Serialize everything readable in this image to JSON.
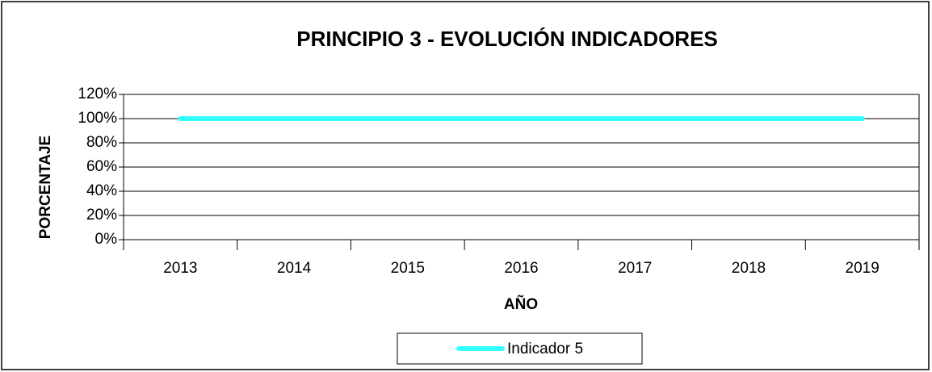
{
  "chart_data": {
    "type": "line",
    "title": "PRINCIPIO 3 - EVOLUCIÓN INDICADORES",
    "x_label": "AÑO",
    "y_label": "PORCENTAJE",
    "categories": [
      "2013",
      "2014",
      "2015",
      "2016",
      "2017",
      "2018",
      "2019"
    ],
    "series": [
      {
        "name": "Indicador 5",
        "color": "#33ffff",
        "values": [
          100,
          100,
          100,
          100,
          100,
          100,
          100
        ]
      }
    ],
    "ylim": [
      0,
      120
    ],
    "yticks": [
      {
        "value": 0,
        "label": "0%"
      },
      {
        "value": 20,
        "label": "20%"
      },
      {
        "value": 40,
        "label": "40%"
      },
      {
        "value": 60,
        "label": "60%"
      },
      {
        "value": 80,
        "label": "80%"
      },
      {
        "value": 100,
        "label": "100%"
      },
      {
        "value": 120,
        "label": "120%"
      }
    ],
    "grid": true,
    "legend": "bottom"
  }
}
